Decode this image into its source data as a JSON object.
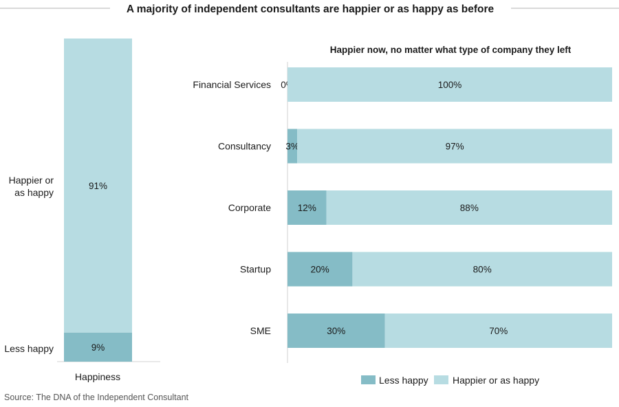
{
  "title": "A majority of independent consultants are happier or as happy as before",
  "source": "Source: The DNA of the Independent Consultant",
  "colors": {
    "less_happy": "#85bcc6",
    "happier": "#b7dce2",
    "rule": "#b3b3b3",
    "axis": "#d0d0d0"
  },
  "chart_data": [
    {
      "type": "bar",
      "stacked": true,
      "orientation": "vertical",
      "categories": [
        "Happiness"
      ],
      "series": [
        {
          "name": "Less happy",
          "values": [
            9
          ],
          "labels": [
            "9%"
          ]
        },
        {
          "name": "Happier or as happy",
          "values": [
            91
          ],
          "labels": [
            "91%"
          ]
        }
      ],
      "series_labels": [
        "Less happy",
        "Happier or\nas happy"
      ],
      "ylim": [
        0,
        100
      ]
    },
    {
      "type": "bar",
      "stacked": true,
      "orientation": "horizontal",
      "title": "Happier now, no matter what type of company they left",
      "categories": [
        "Financial Services",
        "Consultancy",
        "Corporate",
        "Startup",
        "SME"
      ],
      "series": [
        {
          "name": "Less happy",
          "values": [
            0,
            3,
            12,
            20,
            30
          ],
          "labels": [
            "0%",
            "3%",
            "12%",
            "20%",
            "30%"
          ]
        },
        {
          "name": "Happier or as happy",
          "values": [
            100,
            97,
            88,
            80,
            70
          ],
          "labels": [
            "100%",
            "97%",
            "88%",
            "80%",
            "70%"
          ]
        }
      ],
      "xlim": [
        0,
        100
      ],
      "legend": {
        "position": "bottom",
        "entries": [
          "Less happy",
          "Happier or as happy"
        ]
      }
    }
  ]
}
